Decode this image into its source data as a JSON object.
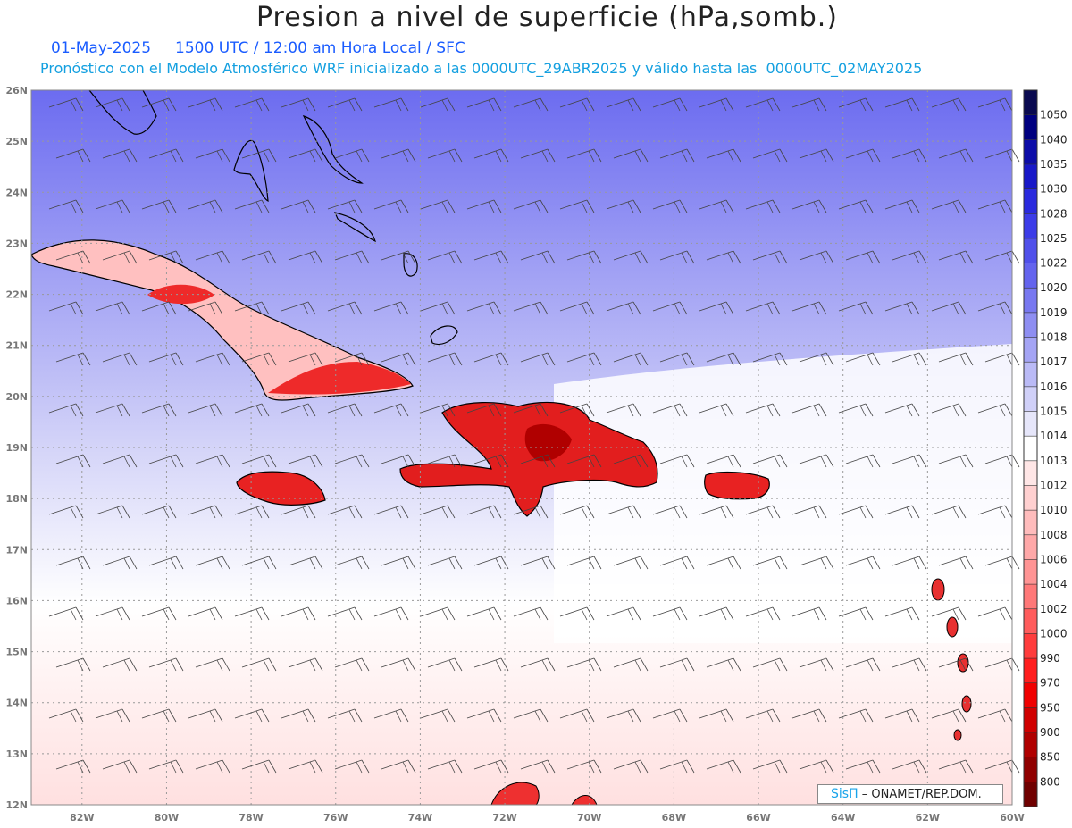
{
  "header": {
    "title": "Presion a nivel de superficie (hPa,somb.)",
    "date_line": "01-May-2025     1500 UTC / 12:00 am Hora Local / SFC",
    "forecast_line": "Pronóstico con el Modelo Atmosférico WRF inicializado a las 0000UTC_29ABR2025 y válido hasta las  0000UTC_02MAY2025"
  },
  "map": {
    "lat_labels": [
      "26N",
      "25N",
      "24N",
      "23N",
      "22N",
      "21N",
      "20N",
      "19N",
      "18N",
      "17N",
      "16N",
      "15N",
      "14N",
      "13N",
      "12N"
    ],
    "lon_labels": [
      "82W",
      "80W",
      "78W",
      "76W",
      "74W",
      "72W",
      "70W",
      "68W",
      "66W",
      "64W",
      "62W",
      "60W"
    ],
    "lat_range": [
      12,
      26
    ],
    "lon_range": [
      -83.2,
      -60
    ],
    "grid": true
  },
  "colorbar": {
    "levels": [
      "1050",
      "1040",
      "1035",
      "1030",
      "1028",
      "1025",
      "1022",
      "1020",
      "1019",
      "1018",
      "1017",
      "1016",
      "1015",
      "1014",
      "1013",
      "1012",
      "1010",
      "1008",
      "1006",
      "1004",
      "1002",
      "1000",
      "990",
      "970",
      "950",
      "900",
      "850",
      "800"
    ],
    "colors": [
      "#0a0a50",
      "#000080",
      "#0c0ca8",
      "#1818c8",
      "#2a2ade",
      "#3c3ce8",
      "#5050ea",
      "#6464ee",
      "#7878f0",
      "#8e8ef2",
      "#a4a4f4",
      "#babaf6",
      "#d0d0f8",
      "#e6e6fa",
      "#ffffff",
      "#ffe6e6",
      "#ffd0d0",
      "#ffbcbc",
      "#ffa8a8",
      "#ff9494",
      "#ff7878",
      "#ff5c5c",
      "#ff3c3c",
      "#ff1e1e",
      "#f00000",
      "#d00000",
      "#b00000",
      "#900000",
      "#700000"
    ]
  },
  "credit": {
    "brand": "SisΠ",
    "org": " – ONAMET/REP.DOM."
  }
}
